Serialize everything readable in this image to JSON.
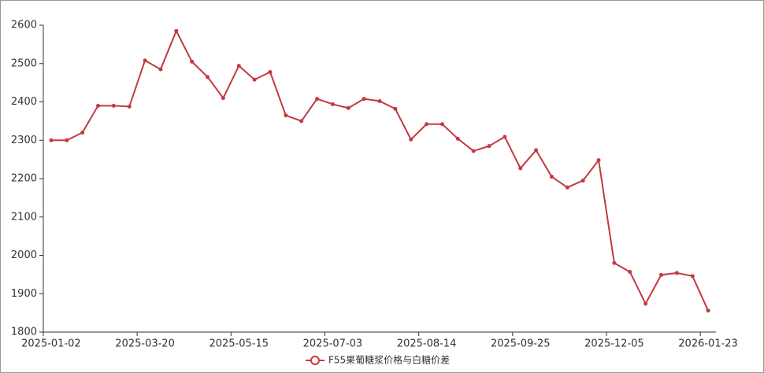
{
  "chart_data": {
    "type": "line",
    "categories": [
      "2025-01-02",
      null,
      null,
      null,
      null,
      null,
      "2025-03-20",
      null,
      null,
      null,
      null,
      null,
      "2025-05-15",
      null,
      null,
      null,
      null,
      null,
      "2025-07-03",
      null,
      null,
      null,
      null,
      null,
      "2025-08-14",
      null,
      null,
      null,
      null,
      null,
      "2025-09-25",
      null,
      null,
      null,
      null,
      null,
      "2025-12-05",
      null,
      null,
      null,
      null,
      null,
      "2026-01-23"
    ],
    "series": [
      {
        "name": "F55果葡糖浆价格与白糖价差",
        "color": "#c23a40",
        "values": [
          2300,
          2300,
          2320,
          2390,
          2390,
          2388,
          2508,
          2485,
          2585,
          2505,
          2465,
          2410,
          2494,
          2458,
          2478,
          2365,
          2350,
          2408,
          2394,
          2384,
          2408,
          2402,
          2382,
          2302,
          2342,
          2342,
          2304,
          2272,
          2285,
          2309,
          2227,
          2274,
          2205,
          2177,
          2195,
          2248,
          1980,
          1957,
          1874,
          1949,
          1954,
          1946,
          1856
        ]
      }
    ],
    "ylim": [
      1800,
      2600
    ],
    "yticks": [
      1800,
      1900,
      2000,
      2100,
      2200,
      2300,
      2400,
      2500,
      2600
    ],
    "grid": false
  }
}
